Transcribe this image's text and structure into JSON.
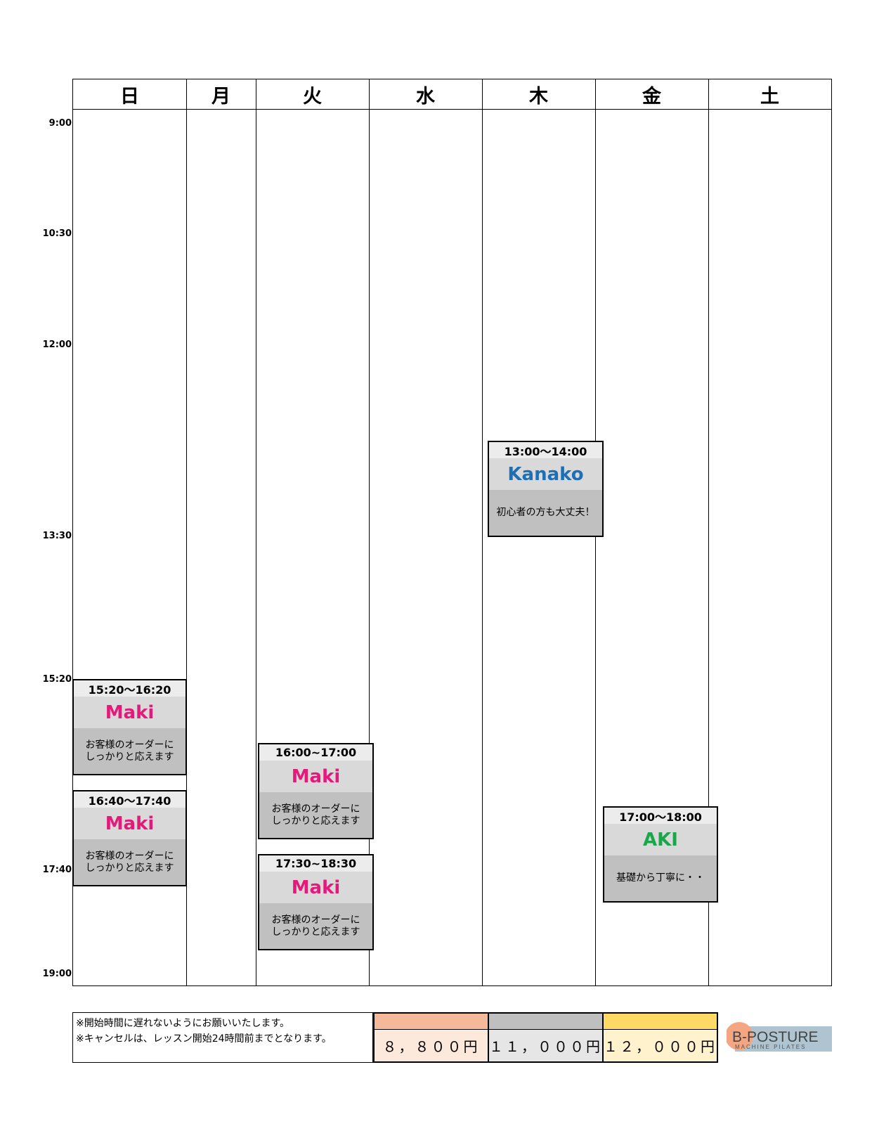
{
  "days": [
    "日",
    "月",
    "火",
    "水",
    "木",
    "金",
    "土"
  ],
  "times": [
    "9:00",
    "10:30",
    "12:00",
    "13:30",
    "15:20",
    "17:40",
    "19:00"
  ],
  "lessons": [
    {
      "day": "日",
      "time": "15:20～16:20",
      "name": "Maki",
      "name_color": "#e5197a",
      "desc": "お客様のオーダーに\nしっかりと応えます"
    },
    {
      "day": "日",
      "time": "16:40～17:40",
      "name": "Maki",
      "name_color": "#e5197a",
      "desc": "お客様のオーダーに\nしっかりと応えます"
    },
    {
      "day": "火",
      "time": "16:00~17:00",
      "name": "Maki",
      "name_color": "#e5197a",
      "desc": "お客様のオーダーに\nしっかりと応えます"
    },
    {
      "day": "火",
      "time": "17:30~18:30",
      "name": "Maki",
      "name_color": "#e5197a",
      "desc": "お客様のオーダーに\nしっかりと応えます"
    },
    {
      "day": "木",
      "time": "13:00～14:00",
      "name": "Kanako",
      "name_color": "#1f6fb5",
      "desc": "初心者の方も大丈夫！"
    },
    {
      "day": "金",
      "time": "17:00～18:00",
      "name": "AKI",
      "name_color": "#1aa64b",
      "desc": "基礎から丁寧に・・"
    }
  ],
  "notes": [
    "※開始時間に遅れないようにお願いいたします。",
    "※キャンセルは、レッスン開始24時間前までとなります。"
  ],
  "prices": [
    {
      "amount": "８，８００円",
      "swatch_color": "#f4b99a",
      "fill_color": "#fde9dc"
    },
    {
      "amount": "１１，０００円",
      "swatch_color": "#bfbfbf",
      "fill_color": "#e6e6e6"
    },
    {
      "amount": "１２，０００円",
      "swatch_color": "#ffd966",
      "fill_color": "#fff2cc"
    }
  ],
  "logo": {
    "main": "B-POSTURE",
    "sub": "MACHINE PILATES",
    "circle_color": "#f4a582",
    "bar_color": "#aec4d1"
  }
}
